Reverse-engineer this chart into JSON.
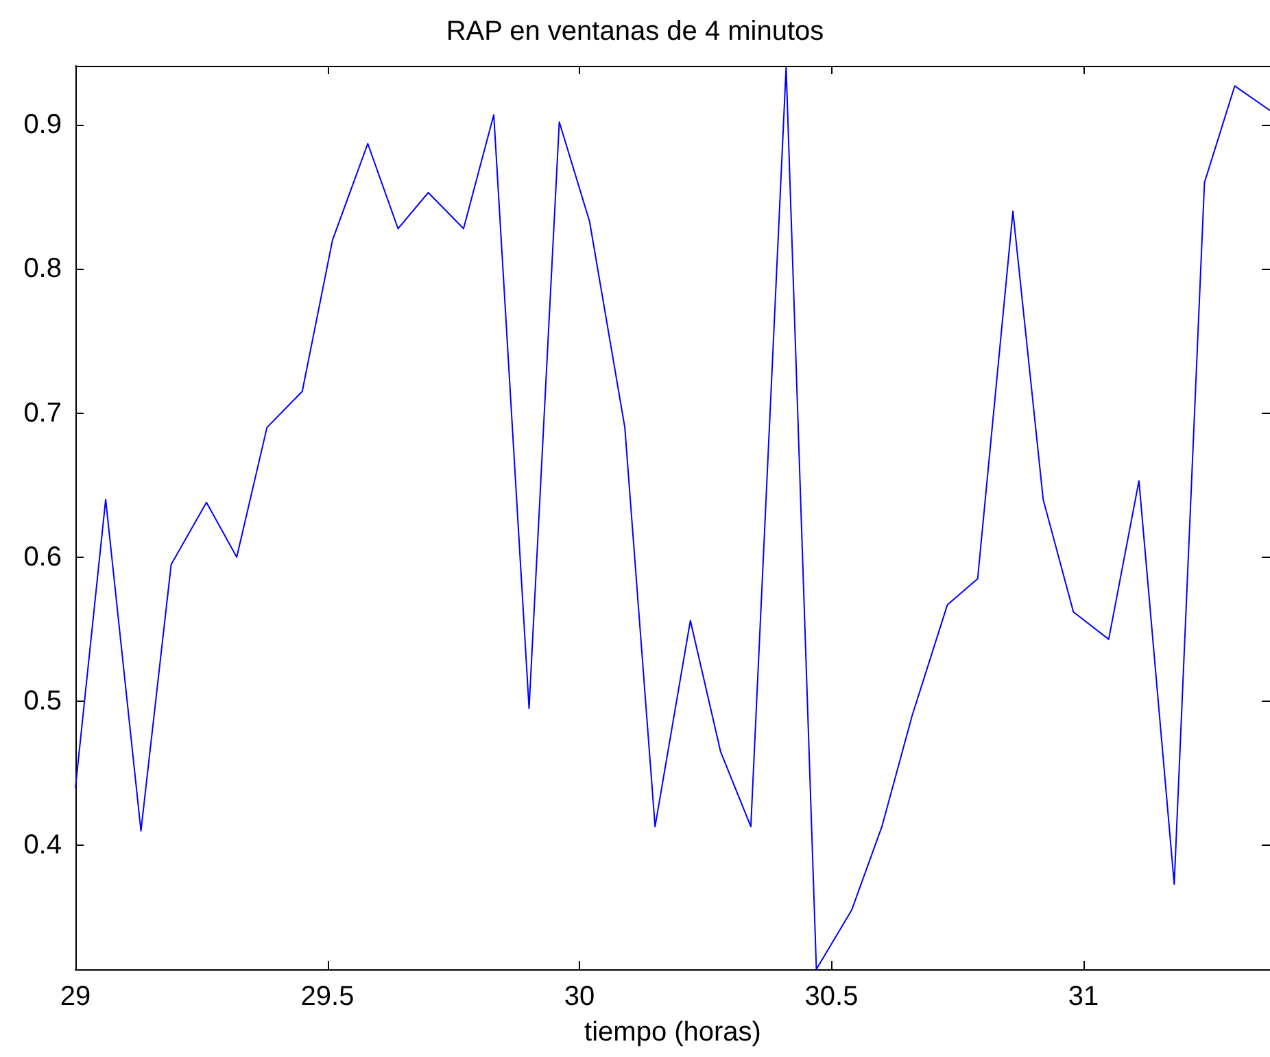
{
  "chart_data": {
    "type": "line",
    "title": "RAP en ventanas de 4 minutos",
    "xlabel": "tiempo (horas)",
    "x": [
      29.0,
      29.06,
      29.13,
      29.19,
      29.26,
      29.32,
      29.38,
      29.45,
      29.51,
      29.58,
      29.64,
      29.7,
      29.77,
      29.83,
      29.9,
      29.96,
      30.02,
      30.09,
      30.15,
      30.22,
      30.28,
      30.34,
      30.41,
      30.47,
      30.54,
      30.6,
      30.66,
      30.73,
      30.79,
      30.86,
      30.92,
      30.98,
      31.05,
      31.11,
      31.18,
      31.24,
      31.3,
      31.37
    ],
    "series": [
      {
        "color": "#0000ff",
        "values": [
          0.44,
          0.64,
          0.41,
          0.595,
          0.638,
          0.6,
          0.69,
          0.715,
          0.82,
          0.887,
          0.828,
          0.853,
          0.828,
          0.907,
          0.495,
          0.902,
          0.833,
          0.69,
          0.413,
          0.556,
          0.465,
          0.413,
          0.94,
          0.314,
          0.355,
          0.413,
          0.49,
          0.567,
          0.585,
          0.84,
          0.64,
          0.562,
          0.543,
          0.653,
          0.373,
          0.86,
          0.927,
          0.91
        ]
      }
    ],
    "xlim": [
      29,
      31.37
    ],
    "xticks": [
      29,
      29.5,
      30,
      30.5,
      31
    ],
    "ylim": [
      0.314,
      0.941
    ],
    "yticks": [
      0.4,
      0.5,
      0.6,
      0.7,
      0.8,
      0.9
    ],
    "grid": false,
    "marker": "none",
    "line_style": "solid"
  }
}
